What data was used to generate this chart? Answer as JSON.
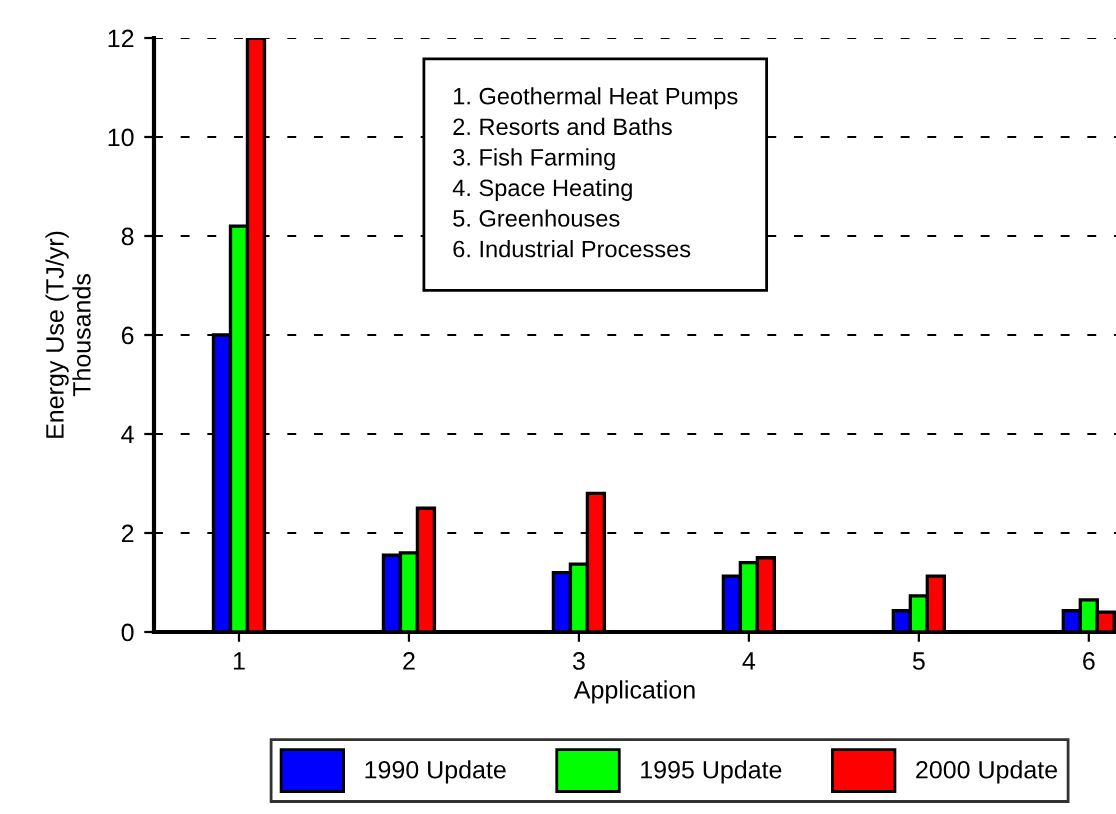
{
  "chart_data": {
    "type": "bar",
    "xlabel": "Application",
    "ylabel": "Energy Use (TJ/yr)\nThousands",
    "categories": [
      "1",
      "2",
      "3",
      "4",
      "5",
      "6"
    ],
    "series": [
      {
        "name": "1990 Update",
        "color": "#0000ff",
        "values": [
          6.0,
          1.55,
          1.2,
          1.13,
          0.43,
          0.43
        ]
      },
      {
        "name": "1995 Update",
        "color": "#00ff00",
        "values": [
          8.2,
          1.6,
          1.37,
          1.4,
          0.73,
          0.65
        ]
      },
      {
        "name": "2000 Update",
        "color": "#ff0000",
        "values": [
          12.0,
          2.5,
          2.8,
          1.5,
          1.13,
          0.4
        ]
      }
    ],
    "ylim": [
      0,
      12
    ],
    "yticks": [
      0,
      2,
      4,
      6,
      8,
      10,
      12
    ],
    "grid": "y",
    "legend": "bottom",
    "annotations": [
      "1. Geothermal Heat Pumps\n2. Resorts and Baths\n3. Fish Farming\n4. Space Heating\n5. Greenhouses\n6. Industrial Processes"
    ]
  }
}
